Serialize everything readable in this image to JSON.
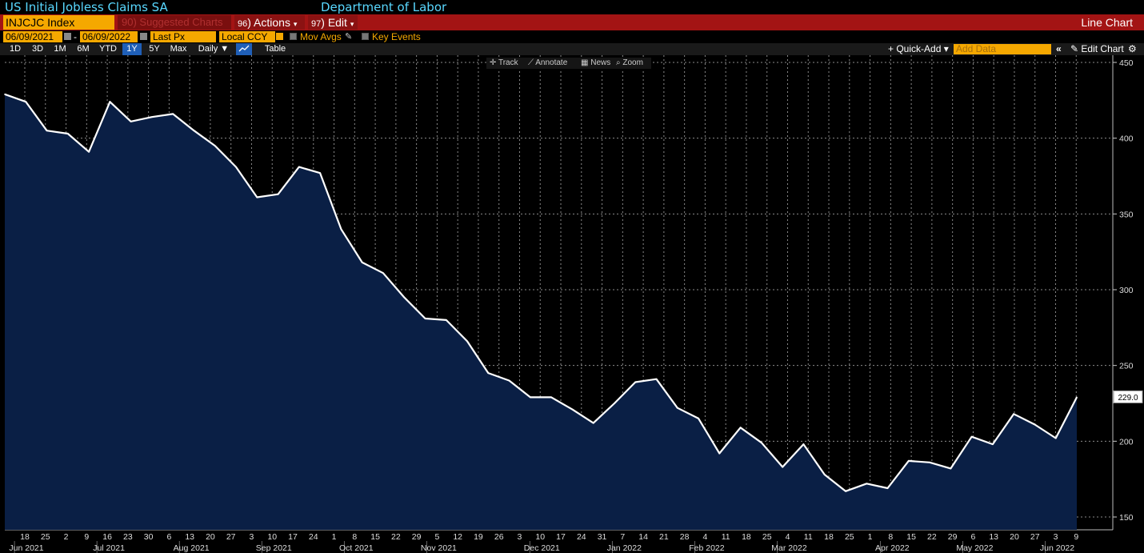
{
  "header": {
    "title": "US Initial Jobless Claims SA",
    "source": "Department of Labor"
  },
  "toolbar": {
    "ticker": "INJCJC Index",
    "suggested": {
      "num": "90",
      "label": "Suggested Charts"
    },
    "actions": {
      "num": "96",
      "label": "Actions",
      "arrow": "▾"
    },
    "edit": {
      "num": "97",
      "label": "Edit",
      "arrow": "▾"
    },
    "chart_type": "Line Chart"
  },
  "dates": {
    "start": "06/09/2021",
    "sep": "-",
    "end": "06/09/2022",
    "field": "Last Px",
    "currency": "Local CCY",
    "mov_avgs": "Mov Avgs",
    "key_events": "Key Events"
  },
  "ranges": {
    "buttons": [
      "1D",
      "3D",
      "1M",
      "6M",
      "YTD",
      "1Y",
      "5Y",
      "Max"
    ],
    "active": "1Y",
    "frequency": "Daily ▼",
    "table": "Table",
    "quick_add": "+ Quick-Add ▾",
    "add_data_placeholder": "Add Data",
    "collapse": "«",
    "edit_chart": "✎ Edit Chart",
    "settings_icon": "gear-icon"
  },
  "chart_tools": {
    "track": "✛ Track",
    "annotate": "⟋ Annotate",
    "news": "▦ News",
    "zoom": "⌕ Zoom"
  },
  "colors": {
    "line": "#ffffff",
    "fill": "#0a1f45",
    "grid": "#8a8a8a",
    "amber": "#f5a800",
    "header_red": "#a31414"
  },
  "chart_data": {
    "type": "area",
    "title": "US Initial Jobless Claims SA",
    "xlabel": "",
    "ylabel": "",
    "ylim": [
      145,
      455
    ],
    "yticks": [
      150,
      200,
      250,
      300,
      350,
      400,
      450
    ],
    "grid": true,
    "last_value_label": "229.0",
    "day_ticks": [
      "18",
      "25",
      "2",
      "9",
      "16",
      "23",
      "30",
      "6",
      "13",
      "20",
      "27",
      "3",
      "10",
      "17",
      "24",
      "1",
      "8",
      "15",
      "22",
      "29",
      "5",
      "12",
      "19",
      "26",
      "3",
      "10",
      "17",
      "24",
      "31",
      "7",
      "14",
      "21",
      "28",
      "4",
      "11",
      "18",
      "25",
      "4",
      "11",
      "18",
      "25",
      "1",
      "8",
      "15",
      "22",
      "29",
      "6",
      "13",
      "20",
      "27",
      "3",
      "9"
    ],
    "month_labels": [
      {
        "label": "Jun 2021",
        "tick": 0
      },
      {
        "label": "Jul 2021",
        "tick": 4
      },
      {
        "label": "Aug 2021",
        "tick": 8
      },
      {
        "label": "Sep 2021",
        "tick": 12
      },
      {
        "label": "Oct 2021",
        "tick": 16
      },
      {
        "label": "Nov 2021",
        "tick": 20
      },
      {
        "label": "Dec 2021",
        "tick": 25
      },
      {
        "label": "Jan 2022",
        "tick": 29
      },
      {
        "label": "Feb 2022",
        "tick": 33
      },
      {
        "label": "Mar 2022",
        "tick": 37
      },
      {
        "label": "Apr 2022",
        "tick": 42
      },
      {
        "label": "May 2022",
        "tick": 46
      },
      {
        "label": "Jun 2022",
        "tick": 50
      }
    ],
    "x": [
      "2021-06-12",
      "2021-06-19",
      "2021-06-26",
      "2021-07-03",
      "2021-07-10",
      "2021-07-17",
      "2021-07-24",
      "2021-07-31",
      "2021-08-07",
      "2021-08-14",
      "2021-08-21",
      "2021-08-28",
      "2021-09-04",
      "2021-09-11",
      "2021-09-18",
      "2021-09-25",
      "2021-10-02",
      "2021-10-09",
      "2021-10-16",
      "2021-10-23",
      "2021-10-30",
      "2021-11-06",
      "2021-11-13",
      "2021-11-20",
      "2021-11-27",
      "2021-12-04",
      "2021-12-11",
      "2021-12-18",
      "2021-12-25",
      "2022-01-01",
      "2022-01-08",
      "2022-01-15",
      "2022-01-22",
      "2022-01-29",
      "2022-02-05",
      "2022-02-12",
      "2022-02-19",
      "2022-02-26",
      "2022-03-05",
      "2022-03-12",
      "2022-03-19",
      "2022-03-26",
      "2022-04-02",
      "2022-04-09",
      "2022-04-16",
      "2022-04-23",
      "2022-04-30",
      "2022-05-07",
      "2022-05-14",
      "2022-05-21",
      "2022-05-28",
      "2022-06-04"
    ],
    "series": [
      {
        "values": [
          429,
          424,
          405,
          403,
          391,
          424,
          411,
          414,
          416,
          405,
          395,
          381,
          361,
          363,
          381,
          377,
          340,
          318,
          311,
          295,
          281,
          280,
          266,
          245,
          240,
          229,
          229,
          221,
          212,
          225,
          239,
          241,
          222,
          215,
          192,
          209,
          199,
          183,
          198,
          178,
          167,
          172,
          169,
          187,
          186,
          182,
          203,
          198,
          218,
          211,
          202,
          229
        ]
      }
    ]
  }
}
